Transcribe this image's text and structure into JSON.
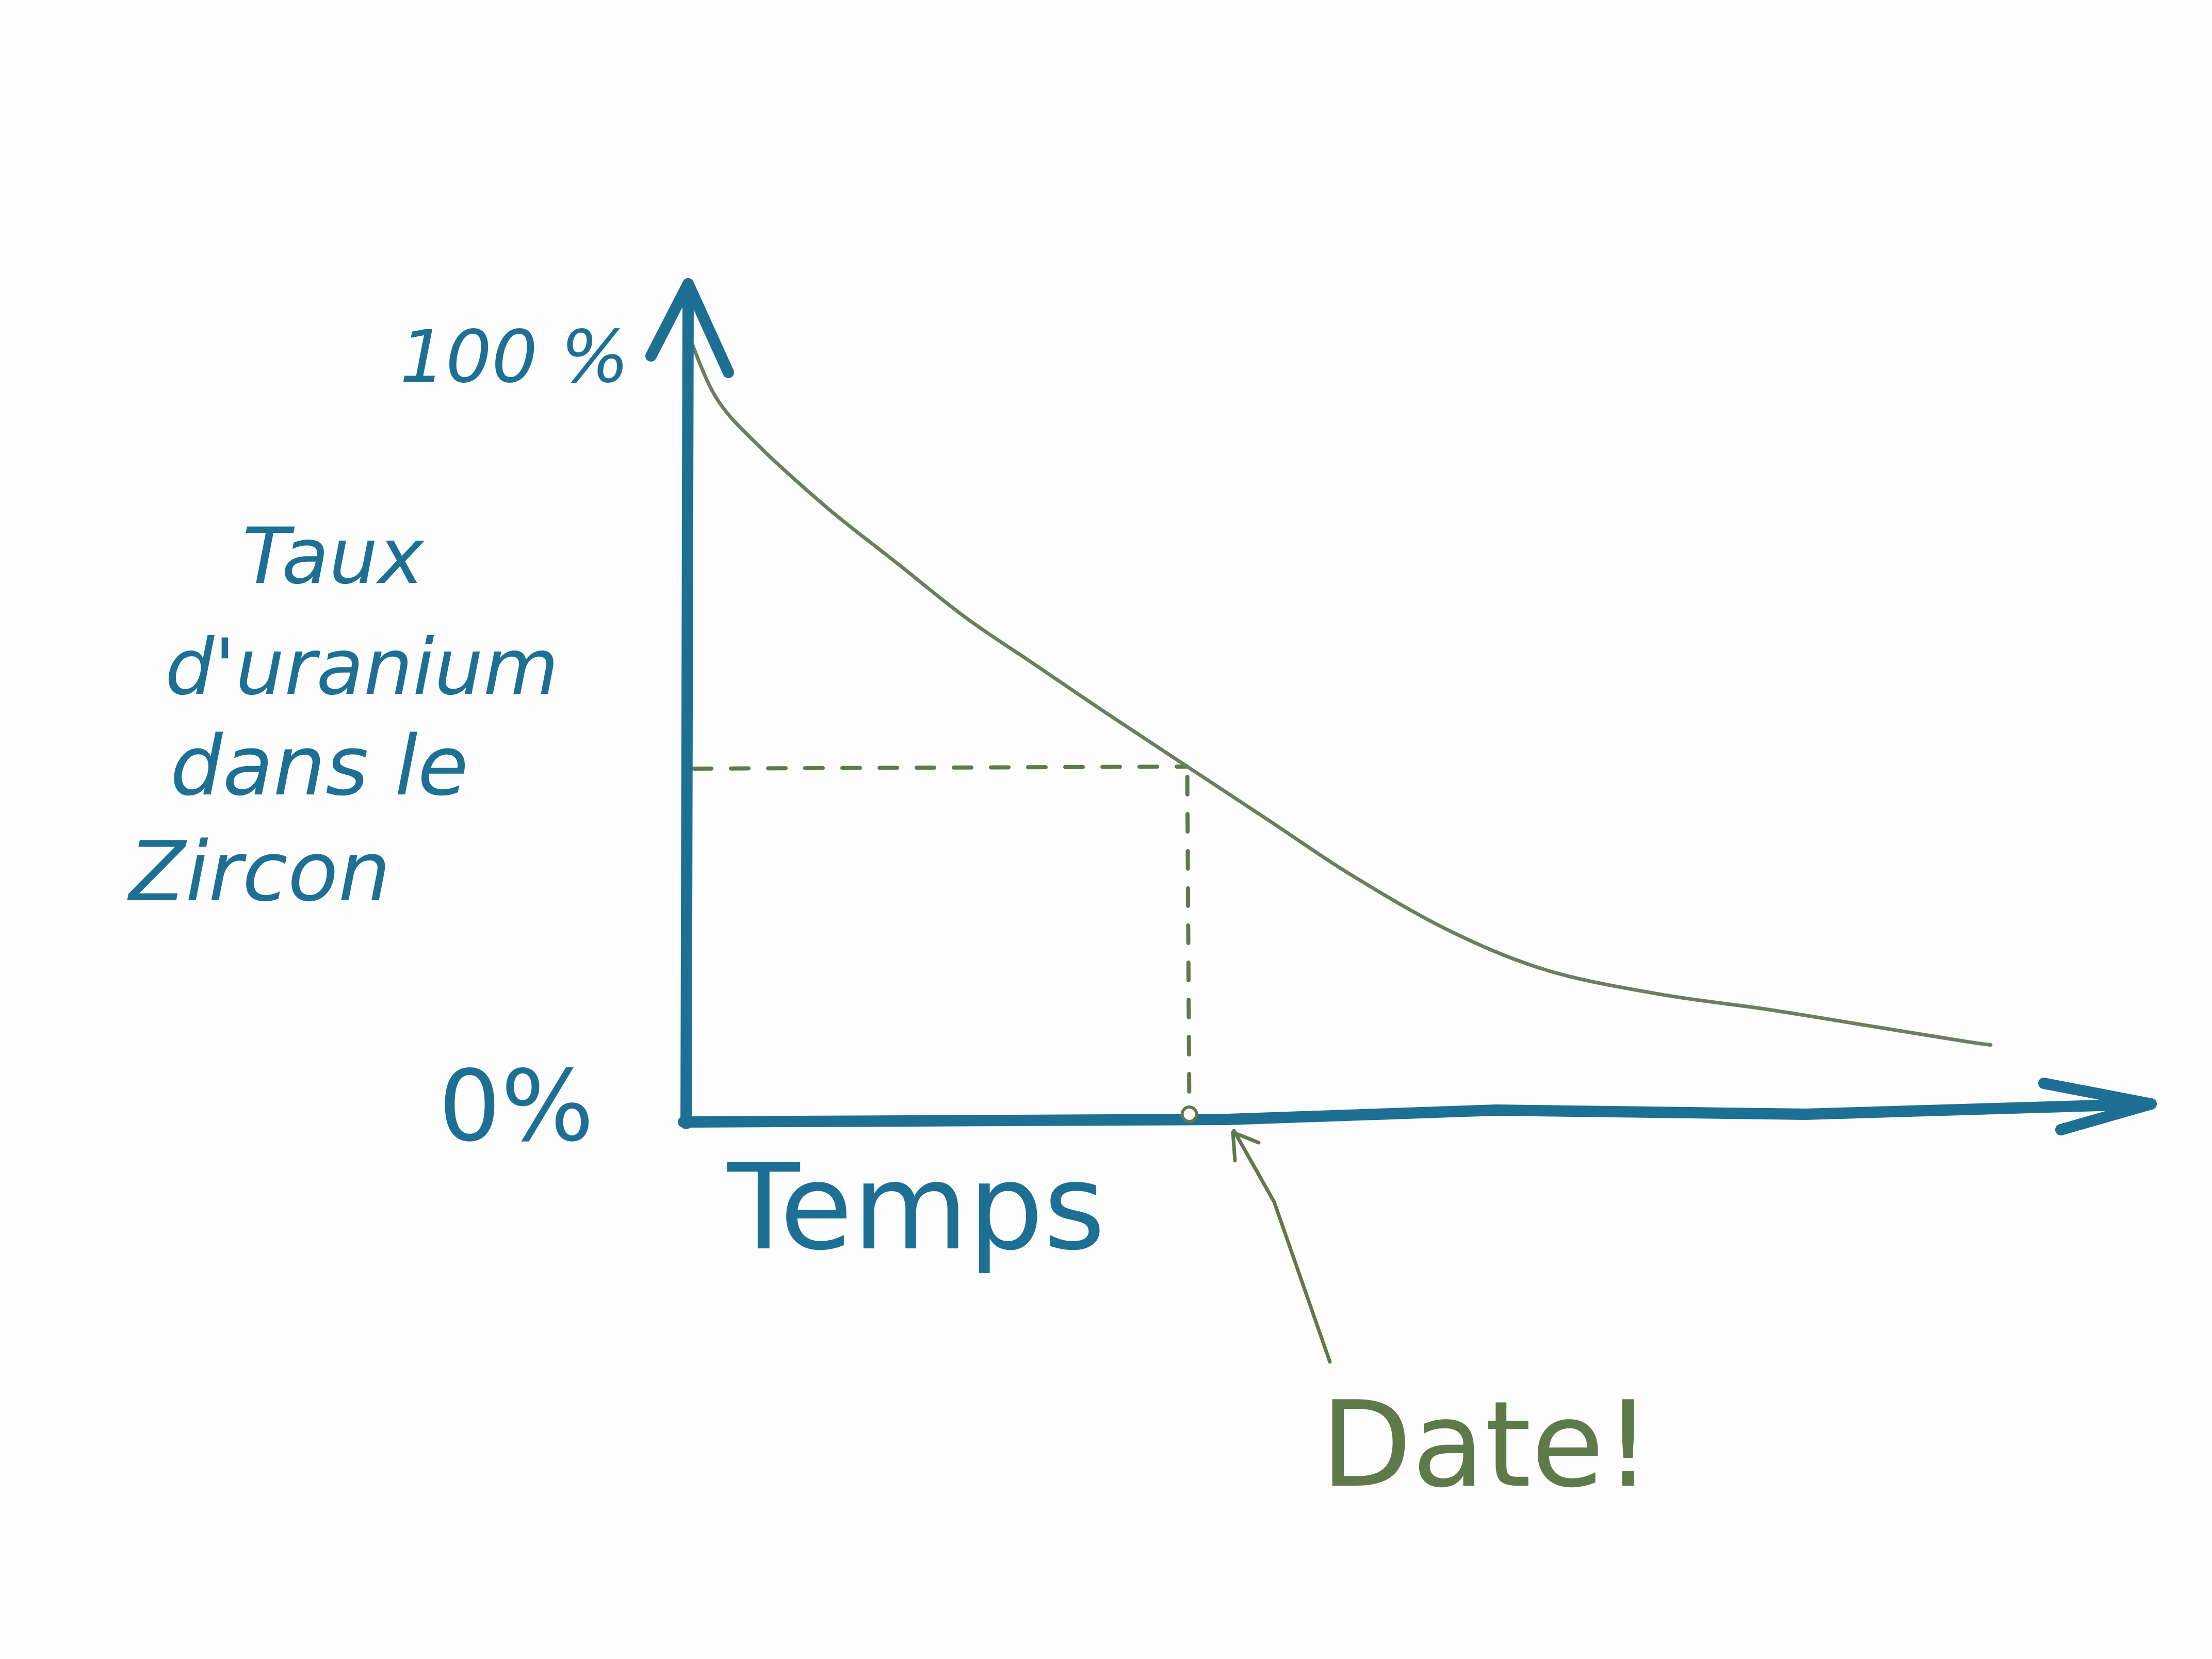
{
  "chart_data": {
    "type": "line",
    "ylabel_lines": [
      "Taux",
      "d'uranium",
      "dans le",
      "Zircon"
    ],
    "xlabel": "Temps",
    "y_tick_labels": [
      "100 %",
      "0%"
    ],
    "ylim": [
      0,
      100
    ],
    "xlim": [
      0,
      100
    ],
    "series": [
      {
        "x": [
          0,
          2,
          5,
          10,
          15,
          20,
          25,
          30,
          36,
          42,
          48,
          55,
          62,
          70,
          78,
          85,
          92,
          94
        ],
        "y": [
          100,
          92,
          86,
          78,
          71,
          64,
          58,
          52,
          45,
          38,
          31,
          24,
          19,
          16,
          14,
          12,
          10,
          9.5
        ]
      }
    ],
    "marker": {
      "x": 36,
      "y": 45,
      "label": "Date!"
    },
    "colors": {
      "axes": "#1e6f94",
      "curve": "#6b7f5e",
      "annotation": "#5f7a4a"
    }
  }
}
